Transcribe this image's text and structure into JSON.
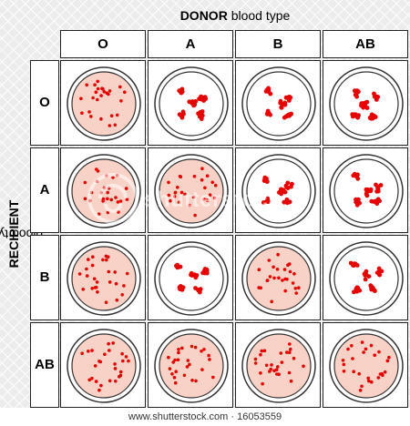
{
  "donor_title": {
    "bold": "DONOR",
    "rest": " blood type"
  },
  "recipient_title": {
    "bold": "RECIPIENT",
    "rest": " blood type"
  },
  "columns": [
    "O",
    "A",
    "B",
    "AB"
  ],
  "rows": [
    "O",
    "A",
    "B",
    "AB"
  ],
  "compatibility": [
    [
      "compatible",
      "agglutinated",
      "agglutinated",
      "agglutinated"
    ],
    [
      "compatible",
      "compatible",
      "agglutinated",
      "agglutinated"
    ],
    [
      "compatible",
      "agglutinated",
      "compatible",
      "agglutinated"
    ],
    [
      "compatible",
      "compatible",
      "compatible",
      "compatible"
    ]
  ],
  "colors": {
    "cell": "#e60000",
    "dish_fill": "#f8d2c6",
    "plain_fill": "#ffffff",
    "rim": "#333333"
  },
  "watermark": "shutterstock",
  "footer": "www.shutterstock.com · 16053559"
}
